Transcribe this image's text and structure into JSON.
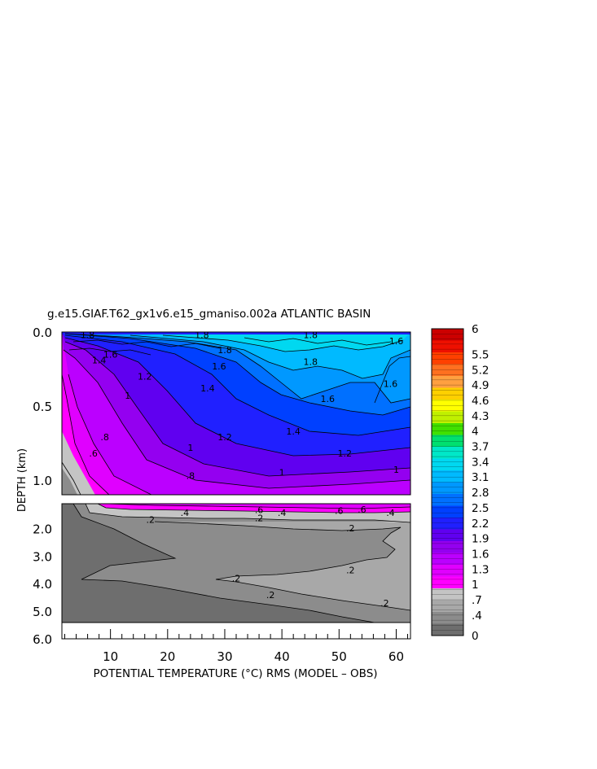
{
  "chart_data": {
    "type": "heatmap",
    "title": "g.e15.GIAF.T62_gx1v6.e15_gmaniso.002a ATLANTIC BASIN",
    "xlabel": "POTENTIAL TEMPERATURE (°C) RMS (MODEL – OBS)",
    "ylabel": "DEPTH (km)",
    "x_ticks": [
      "10",
      "20",
      "30",
      "40",
      "50",
      "60"
    ],
    "x_tick_values": [
      10,
      20,
      30,
      40,
      50,
      60
    ],
    "xlim": [
      1.5,
      62.5
    ],
    "y_ticks_upper": [
      "0.0",
      "0.5",
      "1.0"
    ],
    "y_tick_values_upper": [
      0.0,
      0.5,
      1.0
    ],
    "ylim_upper": [
      0.0,
      1.1
    ],
    "y_ticks_lower": [
      "2.0",
      "3.0",
      "4.0",
      "5.0",
      "6.0"
    ],
    "y_tick_values_lower": [
      2.0,
      3.0,
      4.0,
      5.0,
      6.0
    ],
    "ylim_lower": [
      1.1,
      6.0
    ],
    "colorbar": {
      "labels": [
        "6",
        "5.5",
        "5.2",
        "4.9",
        "4.6",
        "4.3",
        "4",
        "3.7",
        "3.4",
        "3.1",
        "2.8",
        "2.5",
        "2.2",
        "1.9",
        "1.6",
        "1.3",
        "1",
        ".7",
        ".4",
        "0"
      ],
      "label_values": [
        6,
        5.5,
        5.2,
        4.9,
        4.6,
        4.3,
        4.0,
        3.7,
        3.4,
        3.1,
        2.8,
        2.5,
        2.2,
        1.9,
        1.6,
        1.3,
        1.0,
        0.7,
        0.4,
        0
      ],
      "range": [
        0,
        6
      ],
      "colors": [
        "#6e6e6e",
        "#8c8c8c",
        "#a8a8a8",
        "#c4c4c4",
        "#ff00ff",
        "#e000ff",
        "#bb00ff",
        "#9400f0",
        "#6000f0",
        "#2020ff",
        "#0040ff",
        "#0070ff",
        "#0098ff",
        "#00baff",
        "#00d8f0",
        "#00e8c8",
        "#00e070",
        "#40e000",
        "#c0f000",
        "#ffff00",
        "#ffd000",
        "#ffa040",
        "#ff7020",
        "#ff4000",
        "#ee1000",
        "#cc0000"
      ]
    },
    "contour_labels_upper": [
      {
        "text": "1.8",
        "x": 6,
        "y": 0.02
      },
      {
        "text": "1.8",
        "x": 26,
        "y": 0.02
      },
      {
        "text": "1.8",
        "x": 45,
        "y": 0.02
      },
      {
        "text": "1.8",
        "x": 30,
        "y": 0.12
      },
      {
        "text": "1.8",
        "x": 45,
        "y": 0.2
      },
      {
        "text": "1.6",
        "x": 10,
        "y": 0.15
      },
      {
        "text": "1.6",
        "x": 29,
        "y": 0.23
      },
      {
        "text": "1.6",
        "x": 60,
        "y": 0.06
      },
      {
        "text": "1.6",
        "x": 59,
        "y": 0.35
      },
      {
        "text": "1.6",
        "x": 48,
        "y": 0.45
      },
      {
        "text": "1.4",
        "x": 8,
        "y": 0.19
      },
      {
        "text": "1.4",
        "x": 27,
        "y": 0.38
      },
      {
        "text": "1.4",
        "x": 42,
        "y": 0.67
      },
      {
        "text": "1.2",
        "x": 16,
        "y": 0.3
      },
      {
        "text": "1.2",
        "x": 30,
        "y": 0.71
      },
      {
        "text": "1.2",
        "x": 51,
        "y": 0.82
      },
      {
        "text": "1",
        "x": 13,
        "y": 0.43
      },
      {
        "text": "1",
        "x": 24,
        "y": 0.78
      },
      {
        "text": "1",
        "x": 40,
        "y": 0.95
      },
      {
        "text": "1",
        "x": 60,
        "y": 0.93
      },
      {
        "text": ".8",
        "x": 9,
        "y": 0.71
      },
      {
        "text": ".8",
        "x": 24,
        "y": 0.97
      },
      {
        "text": ".6",
        "x": 7,
        "y": 0.82
      }
    ],
    "contour_labels_lower": [
      {
        "text": ".4",
        "x": 23,
        "y": 1.42
      },
      {
        "text": ".4",
        "x": 40,
        "y": 1.42
      },
      {
        "text": ".4",
        "x": 59,
        "y": 1.42
      },
      {
        "text": ".6",
        "x": 36,
        "y": 1.32
      },
      {
        "text": ".6",
        "x": 50,
        "y": 1.35
      },
      {
        "text": ".6",
        "x": 54,
        "y": 1.3
      },
      {
        "text": ".2",
        "x": 17,
        "y": 1.68
      },
      {
        "text": ".2",
        "x": 36,
        "y": 1.62
      },
      {
        "text": ".2",
        "x": 52,
        "y": 1.98
      },
      {
        "text": ".2",
        "x": 52,
        "y": 3.5
      },
      {
        "text": ".2",
        "x": 32,
        "y": 3.8
      },
      {
        "text": ".2",
        "x": 38,
        "y": 4.4
      },
      {
        "text": ".2",
        "x": 58,
        "y": 4.7
      }
    ]
  }
}
